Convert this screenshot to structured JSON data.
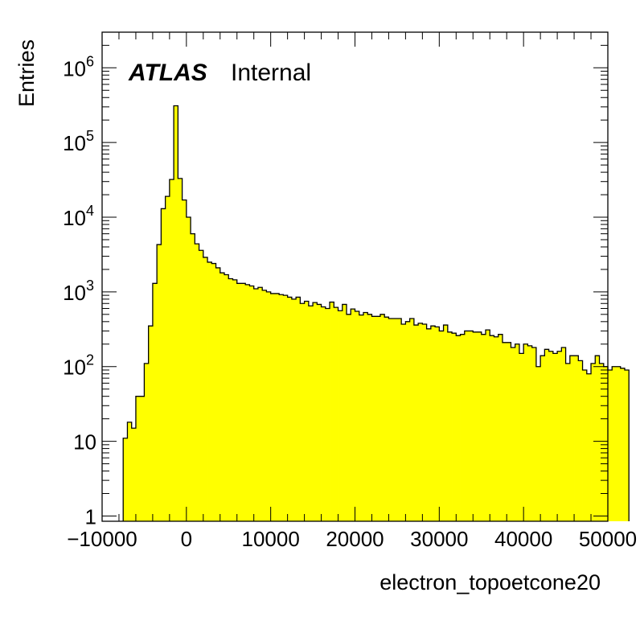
{
  "chart_data": {
    "type": "histogram",
    "title": "",
    "xlabel": "electron_topoetcone20",
    "ylabel": "Entries",
    "xlim": [
      -10000,
      50000
    ],
    "ylim": [
      0.85,
      3000000
    ],
    "yscale": "log",
    "bin_width": 500,
    "bins_start": -7500,
    "fill_color": "#ffff00",
    "line_color": "#000000",
    "label_main": "ATLAS",
    "label_sub": "Internal",
    "x_ticks": [
      {
        "value": -10000,
        "label": "−10000"
      },
      {
        "value": 0,
        "label": "0"
      },
      {
        "value": 10000,
        "label": "10000"
      },
      {
        "value": 20000,
        "label": "20000"
      },
      {
        "value": 30000,
        "label": "30000"
      },
      {
        "value": 40000,
        "label": "40000"
      },
      {
        "value": 50000,
        "label": "50000"
      }
    ],
    "y_ticks": [
      {
        "value": 1,
        "mant": "1",
        "exp": ""
      },
      {
        "value": 10,
        "mant": "10",
        "exp": ""
      },
      {
        "value": 100,
        "mant": "10",
        "exp": "2"
      },
      {
        "value": 1000,
        "mant": "10",
        "exp": "3"
      },
      {
        "value": 10000,
        "mant": "10",
        "exp": "4"
      },
      {
        "value": 100000,
        "mant": "10",
        "exp": "5"
      },
      {
        "value": 1000000,
        "mant": "10",
        "exp": "6"
      }
    ],
    "values": [
      11,
      18,
      15,
      40,
      40,
      110,
      350,
      1300,
      4300,
      13000,
      19000,
      32000,
      310000,
      33000,
      17000,
      10000,
      6000,
      4400,
      3600,
      2900,
      2500,
      2400,
      2100,
      1800,
      1700,
      1500,
      1450,
      1300,
      1300,
      1250,
      1200,
      1100,
      1150,
      1050,
      1000,
      950,
      950,
      920,
      900,
      850,
      800,
      850,
      700,
      750,
      650,
      720,
      680,
      630,
      600,
      730,
      620,
      560,
      680,
      500,
      590,
      550,
      490,
      530,
      500,
      470,
      470,
      500,
      460,
      440,
      440,
      440,
      370,
      400,
      440,
      360,
      380,
      370,
      320,
      350,
      340,
      300,
      360,
      290,
      280,
      260,
      270,
      300,
      300,
      290,
      290,
      270,
      310,
      260,
      250,
      270,
      210,
      210,
      180,
      200,
      150,
      200,
      190,
      180,
      100,
      140,
      170,
      160,
      150,
      160,
      180,
      110,
      140,
      140,
      120,
      90,
      80,
      110,
      140,
      110,
      100,
      90,
      100,
      100,
      95,
      90
    ]
  }
}
